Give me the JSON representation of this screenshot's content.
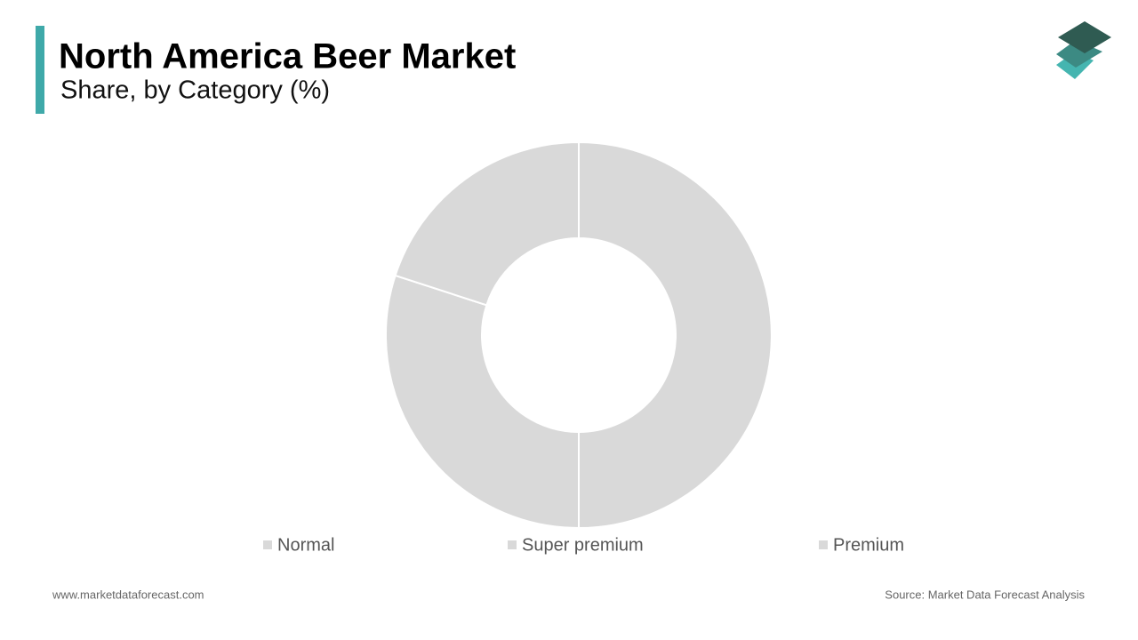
{
  "chart_data": {
    "type": "donut",
    "title": "North America Beer Market",
    "subtitle": "Share, by Category (%)",
    "categories": [
      "Normal",
      "Super premium",
      "Premium"
    ],
    "values": [
      50,
      30,
      20
    ],
    "colors": [
      "#d9d9d9",
      "#d9d9d9",
      "#d9d9d9"
    ]
  },
  "footer": {
    "website": "www.marketdataforecast.com",
    "source": "Source: Market Data Forecast Analysis"
  }
}
